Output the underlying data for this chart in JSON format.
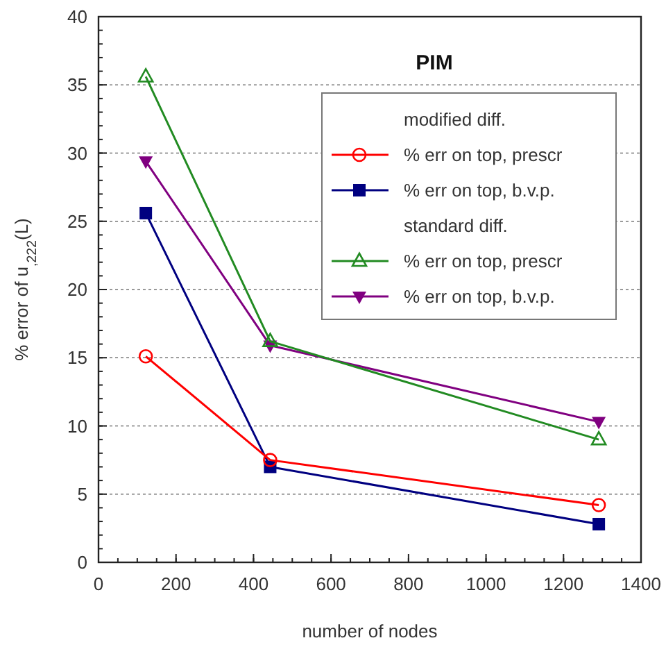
{
  "chart_data": {
    "type": "line",
    "title": "PIM",
    "xlabel": "number of  nodes",
    "ylabel": "% error of u$_{,222}$(L)",
    "x": [
      122,
      443,
      1291
    ],
    "series": [
      {
        "name": "% err on top, prescr",
        "color": "#ff0000",
        "marker": "circle",
        "values": [
          15.1,
          7.5,
          4.2
        ]
      },
      {
        "name": "% err on top, b.v.p.",
        "color": "#000080",
        "marker": "square",
        "values": [
          25.6,
          7.0,
          2.8
        ]
      },
      {
        "name": "% err on top, prescr",
        "color": "#228b22",
        "marker": "triangle",
        "values": [
          35.6,
          16.2,
          9.0
        ]
      },
      {
        "name": "% err on top, b.v.p.",
        "color": "#800080",
        "marker": "triangle-down",
        "values": [
          29.4,
          15.9,
          10.3
        ]
      }
    ],
    "annotations": [
      "modified diff.",
      "standard diff."
    ],
    "xlim": [
      0,
      1400
    ],
    "xticks": [
      0,
      200,
      400,
      600,
      800,
      1000,
      1200,
      1400
    ],
    "ylim": [
      0,
      40
    ],
    "yticks": [
      0,
      5,
      10,
      15,
      20,
      25,
      30,
      35,
      40
    ],
    "grid": "y",
    "legend": "top right",
    "line_style": "solid"
  }
}
